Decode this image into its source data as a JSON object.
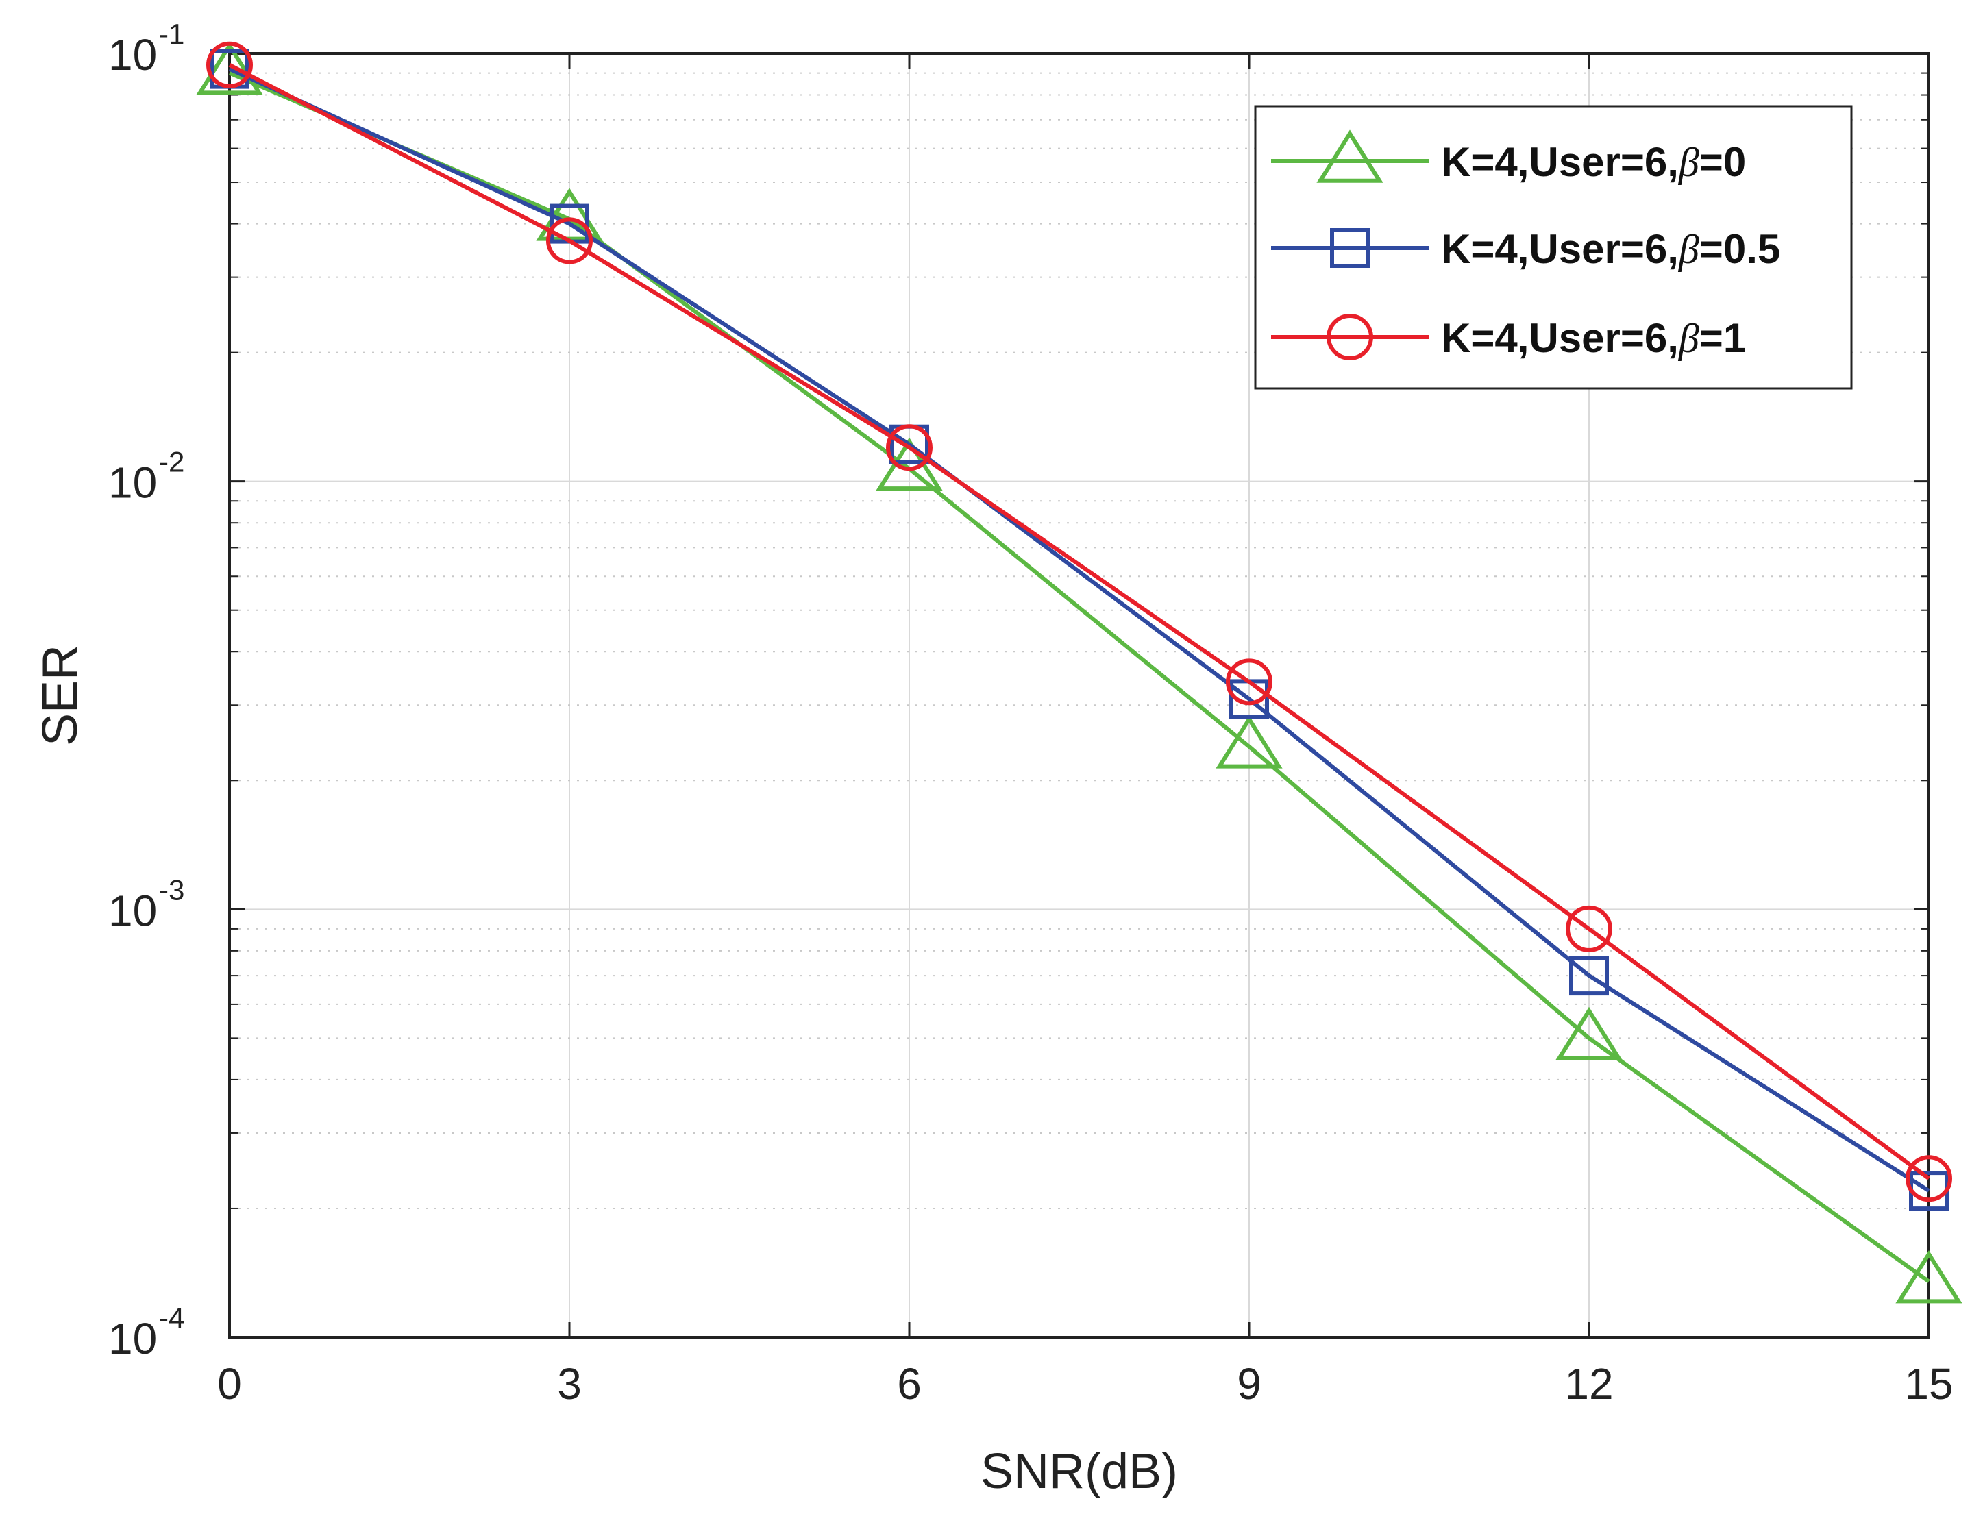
{
  "chart_data": {
    "type": "line",
    "title": "",
    "xlabel": "SNR(dB)",
    "ylabel": "SER",
    "x": [
      0,
      3,
      6,
      9,
      12,
      15
    ],
    "xlim": [
      0,
      15
    ],
    "xticks": [
      "0",
      "3",
      "6",
      "9",
      "12",
      "15"
    ],
    "yscale": "log",
    "ylim": [
      0.0001,
      0.1
    ],
    "yticks": [
      {
        "base": "10",
        "exp": "-1",
        "value": 0.1
      },
      {
        "base": "10",
        "exp": "-2",
        "value": 0.01
      },
      {
        "base": "10",
        "exp": "-3",
        "value": 0.001
      },
      {
        "base": "10",
        "exp": "-4",
        "value": 0.0001
      }
    ],
    "grid": true,
    "legend_position": "top-right",
    "series": [
      {
        "name": "K=4,User=6,β=0",
        "label_prefix": "K=4,User=6,",
        "label_symbol": "β",
        "label_suffix": "=0",
        "color": "#5cb843",
        "marker": "triangle",
        "values": [
          0.09,
          0.041,
          0.0107,
          0.0024,
          0.0005,
          0.000135
        ]
      },
      {
        "name": "K=4,User=6,β=0.5",
        "label_prefix": "K=4,User=6,",
        "label_symbol": "β",
        "label_suffix": "=0.5",
        "color": "#2f4aa0",
        "marker": "square",
        "values": [
          0.092,
          0.04,
          0.0122,
          0.0031,
          0.0007,
          0.00022
        ]
      },
      {
        "name": "K=4,User=6,β=1",
        "label_prefix": "K=4,User=6,",
        "label_symbol": "β",
        "label_suffix": "=1",
        "color": "#e8202a",
        "marker": "circle",
        "values": [
          0.094,
          0.0365,
          0.012,
          0.0034,
          0.0009,
          0.000235
        ]
      }
    ]
  }
}
